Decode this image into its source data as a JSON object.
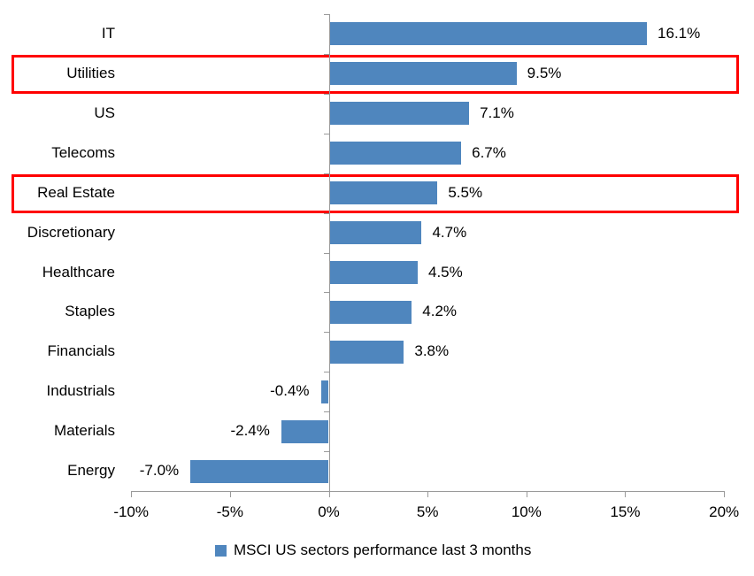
{
  "chart_data": {
    "type": "bar",
    "orientation": "horizontal",
    "title": "",
    "categories": [
      "IT",
      "Utilities",
      "US",
      "Telecoms",
      "Real Estate",
      "Discretionary",
      "Healthcare",
      "Staples",
      "Financials",
      "Industrials",
      "Materials",
      "Energy"
    ],
    "values": [
      16.1,
      9.5,
      7.1,
      6.7,
      5.5,
      4.7,
      4.5,
      4.2,
      3.8,
      -0.4,
      -2.4,
      -7.0
    ],
    "value_labels": [
      "16.1%",
      "9.5%",
      "7.1%",
      "6.7%",
      "5.5%",
      "4.7%",
      "4.5%",
      "4.2%",
      "3.8%",
      "-0.4%",
      "-2.4%",
      "-7.0%"
    ],
    "x_ticks": [
      "-10%",
      "-5%",
      "0%",
      "5%",
      "10%",
      "15%",
      "20%"
    ],
    "x_tick_values": [
      -10,
      -5,
      0,
      5,
      10,
      15,
      20
    ],
    "xlim": [
      -10,
      20
    ],
    "grid": false,
    "legend": "MSCI US sectors performance last 3 months",
    "legend_position": "bottom",
    "bar_color": "#4f86be",
    "axis_color": "#9a9a9a",
    "highlight_color": "#ff0000",
    "highlighted_categories": [
      "Utilities",
      "Real Estate"
    ]
  }
}
